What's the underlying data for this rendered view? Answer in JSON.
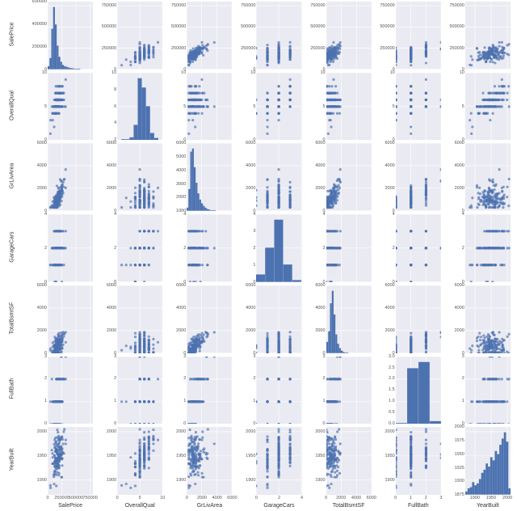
{
  "type": "pairplot",
  "target_size": [
    640,
    632
  ],
  "variables": [
    {
      "name": "SalePrice",
      "label": "SalePrice",
      "min": 0,
      "max": 800000,
      "ticks": [
        0,
        250000,
        500000,
        750000
      ],
      "tick_labels": [
        "0",
        "250000",
        "500000",
        "750000"
      ]
    },
    {
      "name": "OverallQual",
      "label": "OverallQual",
      "min": 0,
      "max": 10,
      "ticks": [
        0,
        5,
        10
      ],
      "tick_labels": [
        "0",
        "5",
        "10"
      ]
    },
    {
      "name": "GrLivArea",
      "label": "GrLivArea",
      "min": 0,
      "max": 6000,
      "ticks": [
        0,
        2000,
        4000,
        6000
      ],
      "tick_labels": [
        "0",
        "2000",
        "4000",
        "6000"
      ]
    },
    {
      "name": "GarageCars",
      "label": "GarageCars",
      "min": 0,
      "max": 4,
      "ticks": [
        0,
        2,
        4
      ],
      "tick_labels": [
        "0",
        "2",
        "4"
      ]
    },
    {
      "name": "TotalBsmtSF",
      "label": "TotalBsmtSF",
      "min": 0,
      "max": 6000,
      "ticks": [
        0,
        2000,
        4000,
        6000
      ],
      "tick_labels": [
        "0",
        "2000",
        "4000",
        "6000"
      ]
    },
    {
      "name": "FullBath",
      "label": "FullBath",
      "min": 0,
      "max": 3,
      "ticks": [
        0,
        1,
        2,
        3
      ],
      "tick_labels": [
        "0",
        "1",
        "2",
        "3"
      ]
    },
    {
      "name": "YearBuilt",
      "label": "YearBuilt",
      "min": 1870,
      "max": 2010,
      "ticks": [
        1900,
        1950,
        2000
      ],
      "tick_labels": [
        "1900",
        "1950",
        "2000"
      ]
    }
  ],
  "hist_yticks": {
    "SalePrice": [
      "0",
      "200000",
      "400000",
      "600000"
    ],
    "OverallQual": [
      "2",
      "4",
      "6",
      "8",
      "10"
    ],
    "GrLivArea": [
      "1000",
      "2000",
      "3000",
      "4000",
      "5000",
      "6000"
    ],
    "GarageCars": [
      "0",
      "1",
      "2",
      "3",
      "4"
    ],
    "TotalBsmtSF": [
      "0",
      "2000",
      "4000",
      "6000"
    ],
    "FullBath": [
      "0.0",
      "0.5",
      "1.0",
      "1.5",
      "2.0",
      "2.5",
      "3.0"
    ],
    "YearBuilt": [
      "1875",
      "1900",
      "1925",
      "1950",
      "1975",
      "2000"
    ]
  },
  "hist_shapes": {
    "SalePrice": [
      0.05,
      0.18,
      0.65,
      1.0,
      0.72,
      0.38,
      0.2,
      0.12,
      0.07,
      0.05,
      0.04,
      0.03,
      0.02,
      0.02,
      0.01,
      0.01,
      0.01,
      0.01,
      0.0,
      0.0,
      0.0,
      0.0,
      0.0,
      0.0,
      0.0
    ],
    "OverallQual": [
      0.0,
      0.02,
      0.02,
      0.05,
      0.25,
      1.0,
      0.85,
      0.55,
      0.12,
      0.04,
      0.0
    ],
    "GrLivArea": [
      0.05,
      0.35,
      0.95,
      1.0,
      0.7,
      0.45,
      0.28,
      0.18,
      0.12,
      0.08,
      0.05,
      0.03,
      0.02,
      0.01,
      0.01,
      0.01,
      0.0,
      0.0,
      0.0,
      0.0,
      0.0,
      0.0,
      0.0,
      0.0,
      0.0
    ],
    "GarageCars": [
      0.12,
      0.55,
      1.0,
      0.28,
      0.03
    ],
    "TotalBsmtSF": [
      0.18,
      0.35,
      0.8,
      1.0,
      0.62,
      0.3,
      0.15,
      0.08,
      0.04,
      0.02,
      0.01,
      0.01,
      0.0,
      0.0,
      0.0,
      0.0,
      0.0,
      0.0,
      0.0,
      0.0,
      0.0,
      0.0,
      0.0,
      0.0,
      0.0
    ],
    "FullBath": [
      0.02,
      0.9,
      1.0,
      0.05
    ],
    "YearBuilt": [
      0.05,
      0.1,
      0.12,
      0.2,
      0.15,
      0.18,
      0.25,
      0.35,
      0.4,
      0.5,
      0.45,
      0.6,
      0.55,
      0.7,
      0.65,
      0.8,
      0.9,
      1.0,
      0.85,
      0.1
    ]
  },
  "layout": {
    "left_gutter": 33,
    "top_gutter": 2,
    "right_gutter": 4,
    "bottom_gutter": 16,
    "hspace": 4,
    "vspace": 4,
    "yticklabel_gutter": 26
  },
  "style": {
    "panel_bg": "#eaeaf2",
    "grid_color": "#ffffff",
    "grid_width": 0.6,
    "marker_color": "#4c72b0",
    "marker_opacity": 0.68,
    "marker_radius": 1.6,
    "bar_color": "#4c72b0",
    "text_color": "#333333",
    "tick_fontsize": 5.5,
    "label_fontsize": 7,
    "n_points": 170,
    "seed": 42
  }
}
